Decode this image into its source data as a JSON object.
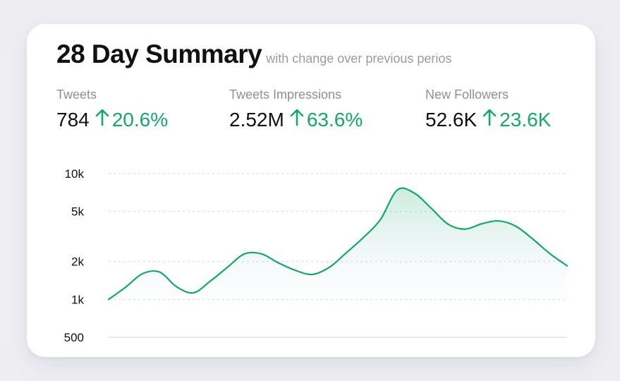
{
  "title": "28 Day Summary",
  "subtitle": "with change over previous perios",
  "stats": [
    {
      "label": "Tweets",
      "value": "784",
      "delta": "20.6%"
    },
    {
      "label": "Tweets Impressions",
      "value": "2.52M",
      "delta": "63.6%"
    },
    {
      "label": "New Followers",
      "value": "52.6K",
      "delta": "23.6K"
    }
  ],
  "colors": {
    "accent": "#12a96b",
    "text": "#111111",
    "muted": "#8f8f96",
    "grid": "#d6d6dc"
  },
  "chart_data": {
    "type": "area",
    "title": "",
    "xlabel": "",
    "ylabel": "",
    "scale": "log",
    "ylim": [
      500,
      10000
    ],
    "yticks": [
      {
        "label": "10k",
        "value": 10000
      },
      {
        "label": "5k",
        "value": 5000
      },
      {
        "label": "2k",
        "value": 2000
      },
      {
        "label": "1k",
        "value": 1000
      },
      {
        "label": "500",
        "value": 500
      }
    ],
    "x": [
      1,
      2,
      3,
      4,
      5,
      6,
      7,
      8,
      9,
      10,
      11,
      12,
      13,
      14,
      15,
      16,
      17,
      18,
      19,
      20,
      21,
      22,
      23,
      24,
      25,
      26,
      27,
      28
    ],
    "series": [
      {
        "name": "Tweets",
        "values": [
          1000,
          1250,
          1600,
          1650,
          1260,
          1130,
          1400,
          1800,
          2300,
          2300,
          1950,
          1700,
          1580,
          1800,
          2350,
          3100,
          4300,
          7400,
          7000,
          5300,
          3950,
          3620,
          4000,
          4200,
          3800,
          3000,
          2300,
          1850
        ]
      }
    ]
  }
}
